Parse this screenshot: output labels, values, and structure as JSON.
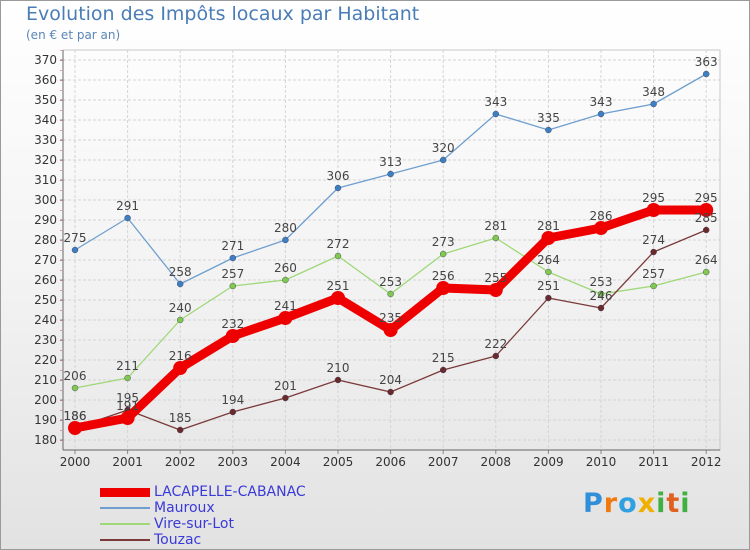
{
  "chart_data": {
    "type": "line",
    "title": "Evolution des Impôts locaux par Habitant",
    "subtitle": "(en € et par an)",
    "xlabel": "",
    "ylabel": "",
    "ylim": [
      180,
      370
    ],
    "ytick_step": 10,
    "categories": [
      "2000",
      "2001",
      "2002",
      "2003",
      "2004",
      "2005",
      "2006",
      "2007",
      "2008",
      "2009",
      "2010",
      "2011",
      "2012"
    ],
    "grid": true,
    "legend_position": "bottom-left",
    "series": [
      {
        "name": "Mauroux",
        "color": "#6f9fcf",
        "marker_color": "#3d7fc0",
        "emphasis": false,
        "values": [
          275,
          291,
          258,
          271,
          280,
          306,
          313,
          320,
          343,
          335,
          343,
          348,
          363
        ]
      },
      {
        "name": "Vire-sur-Lot",
        "color": "#9ed877",
        "marker_color": "#80c850",
        "emphasis": false,
        "values": [
          206,
          211,
          240,
          257,
          260,
          272,
          253,
          273,
          281,
          264,
          253,
          257,
          264
        ]
      },
      {
        "name": "Touzac",
        "color": "#7a3a3a",
        "marker_color": "#6a2a2a",
        "emphasis": false,
        "values": [
          186,
          195,
          185,
          194,
          201,
          210,
          204,
          215,
          222,
          251,
          246,
          274,
          285
        ]
      },
      {
        "name": "LACAPELLE-CABANAC",
        "color": "#ee0000",
        "marker_color": "#ee0000",
        "emphasis": true,
        "values": [
          186,
          191,
          216,
          232,
          241,
          251,
          235,
          256,
          255,
          281,
          286,
          295,
          295
        ]
      }
    ],
    "legend_order": [
      "LACAPELLE-CABANAC",
      "Mauroux",
      "Vire-sur-Lot",
      "Touzac"
    ]
  },
  "branding": {
    "logo_text": "Proxiti",
    "logo_letters": [
      "P",
      "r",
      "o",
      "x",
      "i",
      "t",
      "i"
    ],
    "logo_colors": [
      "#2f8fd8",
      "#f07a10",
      "#30a0e0",
      "#f0b000",
      "#40b040",
      "#e06020",
      "#40b040"
    ]
  }
}
